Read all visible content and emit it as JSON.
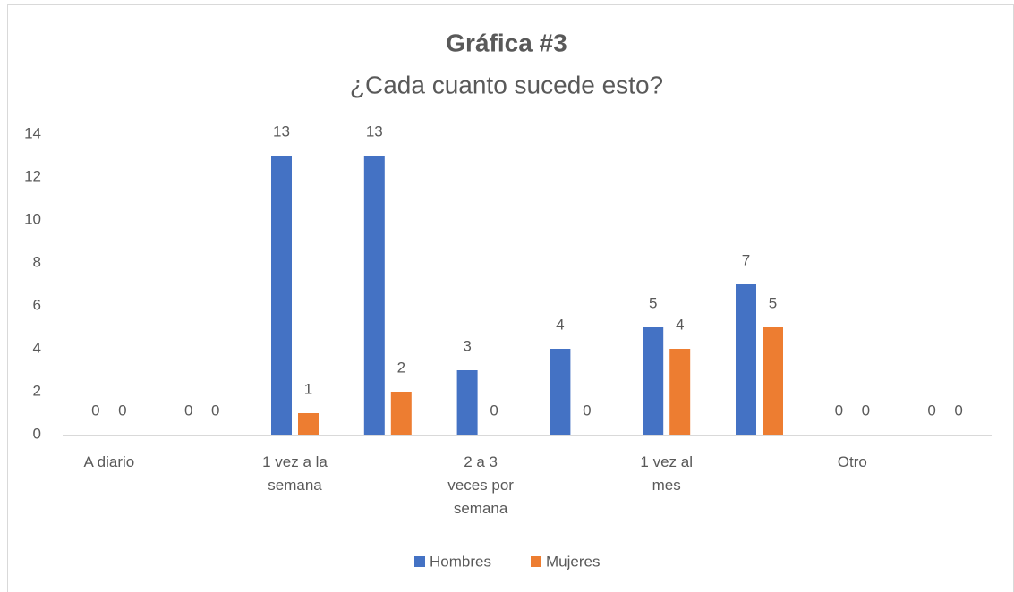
{
  "chart_data": {
    "type": "bar",
    "title": "Gráfica #3",
    "subtitle": "¿Cada cuanto sucede esto?",
    "categories": [
      "A diario",
      null,
      "1 vez a la semana",
      null,
      "2 a 3 veces por semana",
      null,
      "1 vez al mes",
      null,
      "Otro",
      null
    ],
    "series": [
      {
        "name": "Hombres",
        "color": "#4472c4",
        "values": [
          0,
          0,
          13,
          13,
          3,
          4,
          5,
          7,
          0,
          0
        ]
      },
      {
        "name": "Mujeres",
        "color": "#ed7d31",
        "values": [
          0,
          0,
          1,
          2,
          0,
          0,
          4,
          5,
          0,
          0
        ]
      }
    ],
    "ylim": [
      0,
      14
    ],
    "yticks": [
      0,
      2,
      4,
      6,
      8,
      10,
      12,
      14
    ],
    "grid": false,
    "legend": "bottom"
  }
}
